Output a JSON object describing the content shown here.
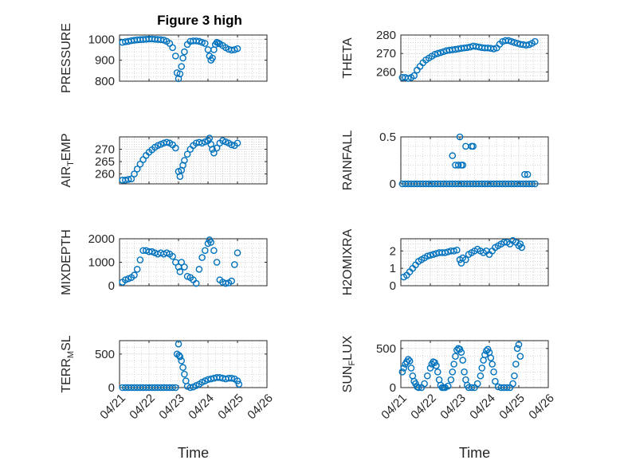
{
  "chart_data": [
    {
      "type": "scatter",
      "title": "Figure 3 high",
      "ylabel": "PRESSURE",
      "ylabel_base": "PRESSURE",
      "ylabel_sub": "",
      "ylabel_tail": "",
      "xlim": [
        0,
        5
      ],
      "xticks": [
        "04/21",
        "04/22",
        "04/23",
        "04/24",
        "04/25",
        "04/26"
      ],
      "show_xticklabels": false,
      "xlabel": "",
      "ylim": [
        800,
        1020
      ],
      "yticks": [
        800,
        900,
        1000
      ],
      "color": "#0072bd",
      "x": [
        0.1,
        0.2,
        0.3,
        0.4,
        0.5,
        0.6,
        0.7,
        0.8,
        0.9,
        1.0,
        1.1,
        1.2,
        1.3,
        1.4,
        1.5,
        1.6,
        1.7,
        1.8,
        1.9,
        1.95,
        2.0,
        2.05,
        2.1,
        2.15,
        2.2,
        2.3,
        2.4,
        2.5,
        2.6,
        2.7,
        2.8,
        2.9,
        3.0,
        3.05,
        3.1,
        3.15,
        3.2,
        3.25,
        3.3,
        3.35,
        3.4,
        3.5,
        3.6,
        3.7,
        3.8,
        3.9,
        4.0
      ],
      "y": [
        985,
        988,
        990,
        993,
        995,
        997,
        998,
        999,
        1000,
        1001,
        1001,
        1000,
        999,
        998,
        996,
        990,
        980,
        960,
        920,
        840,
        812,
        835,
        870,
        910,
        940,
        975,
        990,
        992,
        992,
        990,
        985,
        980,
        950,
        920,
        900,
        910,
        950,
        975,
        985,
        982,
        978,
        970,
        960,
        952,
        948,
        950,
        955
      ]
    },
    {
      "type": "scatter",
      "title": "",
      "ylabel": "THETA",
      "ylabel_base": "THETA",
      "ylabel_sub": "",
      "ylabel_tail": "",
      "xlim": [
        0,
        5
      ],
      "xticks": [
        "04/21",
        "04/22",
        "04/23",
        "04/24",
        "04/25",
        "04/26"
      ],
      "show_xticklabels": false,
      "xlabel": "",
      "ylim": [
        255,
        280
      ],
      "yticks": [
        260,
        270,
        280
      ],
      "color": "#0072bd",
      "x": [
        0.05,
        0.15,
        0.25,
        0.35,
        0.45,
        0.55,
        0.65,
        0.75,
        0.85,
        0.95,
        1.05,
        1.15,
        1.25,
        1.35,
        1.45,
        1.55,
        1.65,
        1.75,
        1.85,
        1.95,
        2.05,
        2.15,
        2.25,
        2.35,
        2.45,
        2.55,
        2.65,
        2.75,
        2.85,
        2.95,
        3.05,
        3.15,
        3.25,
        3.35,
        3.45,
        3.55,
        3.65,
        3.75,
        3.85,
        3.95,
        4.05,
        4.15,
        4.25,
        4.35,
        4.45,
        4.55
      ],
      "y": [
        257,
        257,
        256.5,
        257,
        258,
        261,
        263,
        265,
        266.5,
        267.5,
        268.5,
        269.5,
        270,
        270.5,
        271,
        271.5,
        271.8,
        272,
        272.2,
        272.5,
        272.8,
        273,
        273.2,
        273.5,
        274,
        273.8,
        273.5,
        273.2,
        273,
        273,
        272.8,
        272.5,
        273,
        275,
        276.5,
        277,
        277,
        276.5,
        276,
        275.5,
        275,
        274.8,
        274.5,
        274.8,
        275.5,
        276.5
      ]
    },
    {
      "type": "scatter",
      "title": "",
      "ylabel": "AIR_TEMP",
      "ylabel_base": "AIR",
      "ylabel_sub": "T",
      "ylabel_tail": "EMP",
      "xlim": [
        0,
        5
      ],
      "xticks": [
        "04/21",
        "04/22",
        "04/23",
        "04/24",
        "04/25",
        "04/26"
      ],
      "show_xticklabels": false,
      "xlabel": "",
      "ylim": [
        256,
        275
      ],
      "yticks": [
        260,
        265,
        270
      ],
      "color": "#0072bd",
      "x": [
        0.1,
        0.2,
        0.3,
        0.4,
        0.5,
        0.6,
        0.7,
        0.8,
        0.9,
        1.0,
        1.1,
        1.2,
        1.3,
        1.4,
        1.5,
        1.6,
        1.7,
        1.8,
        1.9,
        2.0,
        2.05,
        2.1,
        2.15,
        2.2,
        2.3,
        2.4,
        2.5,
        2.6,
        2.7,
        2.8,
        2.9,
        3.0,
        3.05,
        3.1,
        3.15,
        3.2,
        3.3,
        3.4,
        3.5,
        3.6,
        3.7,
        3.8,
        3.9,
        4.0
      ],
      "y": [
        257.5,
        257.5,
        257.8,
        258,
        260,
        262,
        264,
        265.8,
        267.5,
        268.8,
        269.8,
        270.8,
        271.5,
        272,
        272.5,
        272.8,
        272.5,
        271.8,
        270.5,
        261,
        259,
        261.5,
        263.5,
        265.5,
        268,
        270,
        271.5,
        272.5,
        272.8,
        272.5,
        273,
        273.5,
        274.5,
        272,
        270,
        268.5,
        270.5,
        272.5,
        273.5,
        273,
        272.5,
        271.8,
        271.5,
        272.5
      ]
    },
    {
      "type": "scatter",
      "title": "",
      "ylabel": "RAINFALL",
      "ylabel_base": "RAINFALL",
      "ylabel_sub": "",
      "ylabel_tail": "",
      "xlim": [
        0,
        5
      ],
      "xticks": [
        "04/21",
        "04/22",
        "04/23",
        "04/24",
        "04/25",
        "04/26"
      ],
      "show_xticklabels": false,
      "xlabel": "",
      "ylim": [
        0,
        0.5
      ],
      "yticks": [
        0,
        0.5
      ],
      "color": "#0072bd",
      "x": [
        0.05,
        0.15,
        0.25,
        0.35,
        0.45,
        0.55,
        0.65,
        0.75,
        0.85,
        0.95,
        1.05,
        1.15,
        1.25,
        1.35,
        1.45,
        1.55,
        1.65,
        1.75,
        1.85,
        1.95,
        2.05,
        2.15,
        2.25,
        2.35,
        2.45,
        2.55,
        2.65,
        2.75,
        2.85,
        2.95,
        3.05,
        3.15,
        3.25,
        3.35,
        3.45,
        3.55,
        3.65,
        3.75,
        3.85,
        3.95,
        4.05,
        4.15,
        4.25,
        4.35,
        4.45,
        4.55,
        1.75,
        1.85,
        1.95,
        2.0,
        2.05,
        2.1,
        2.2,
        2.4,
        2.45,
        4.2,
        4.3
      ],
      "y": [
        0,
        0,
        0,
        0,
        0,
        0,
        0,
        0,
        0,
        0,
        0,
        0,
        0,
        0,
        0,
        0,
        0,
        0,
        0,
        0,
        0,
        0,
        0,
        0,
        0,
        0,
        0,
        0,
        0,
        0,
        0,
        0,
        0,
        0,
        0,
        0,
        0,
        0,
        0,
        0,
        0,
        0,
        0,
        0,
        0,
        0,
        0.3,
        0.2,
        0.2,
        0.5,
        0.2,
        0.2,
        0.4,
        0.4,
        0.4,
        0.1,
        0.1
      ]
    },
    {
      "type": "scatter",
      "title": "",
      "ylabel": "MIXDEPTH",
      "ylabel_base": "MIXDEPTH",
      "ylabel_sub": "",
      "ylabel_tail": "",
      "xlim": [
        0,
        5
      ],
      "xticks": [
        "04/21",
        "04/22",
        "04/23",
        "04/24",
        "04/25",
        "04/26"
      ],
      "show_xticklabels": false,
      "xlabel": "",
      "ylim": [
        0,
        2000
      ],
      "yticks": [
        0,
        1000,
        2000
      ],
      "color": "#0072bd",
      "x": [
        0.1,
        0.2,
        0.3,
        0.4,
        0.5,
        0.6,
        0.7,
        0.8,
        0.9,
        1.0,
        1.1,
        1.2,
        1.3,
        1.4,
        1.5,
        1.6,
        1.7,
        1.8,
        1.9,
        2.0,
        2.05,
        2.1,
        2.2,
        2.3,
        2.4,
        2.5,
        2.6,
        2.7,
        2.8,
        2.9,
        3.0,
        3.05,
        3.1,
        3.2,
        3.3,
        3.4,
        3.5,
        3.6,
        3.7,
        3.8,
        3.9,
        4.0
      ],
      "y": [
        150,
        250,
        300,
        350,
        450,
        700,
        1100,
        1500,
        1500,
        1450,
        1450,
        1400,
        1350,
        1400,
        1350,
        1400,
        1350,
        1250,
        1000,
        800,
        600,
        1000,
        800,
        400,
        350,
        250,
        100,
        700,
        1200,
        1500,
        1800,
        1950,
        1850,
        1500,
        1000,
        250,
        150,
        100,
        120,
        200,
        900,
        1400
      ]
    },
    {
      "type": "scatter",
      "title": "",
      "ylabel": "H2OMIXRA",
      "ylabel_base": "H2OMIXRA",
      "ylabel_sub": "",
      "ylabel_tail": "",
      "xlim": [
        0,
        5
      ],
      "xticks": [
        "04/21",
        "04/22",
        "04/23",
        "04/24",
        "04/25",
        "04/26"
      ],
      "show_xticklabels": false,
      "xlabel": "",
      "ylim": [
        0,
        2.7
      ],
      "yticks": [
        0,
        1,
        2
      ],
      "color": "#0072bd",
      "x": [
        0.1,
        0.2,
        0.3,
        0.4,
        0.5,
        0.6,
        0.7,
        0.8,
        0.9,
        1.0,
        1.1,
        1.2,
        1.3,
        1.4,
        1.5,
        1.6,
        1.7,
        1.8,
        1.9,
        2.0,
        2.05,
        2.1,
        2.2,
        2.3,
        2.4,
        2.5,
        2.6,
        2.7,
        2.8,
        2.9,
        3.0,
        3.1,
        3.2,
        3.3,
        3.4,
        3.5,
        3.6,
        3.7,
        3.8,
        3.9,
        4.0,
        4.05,
        4.1
      ],
      "y": [
        0.5,
        0.6,
        0.8,
        1.0,
        1.2,
        1.4,
        1.5,
        1.6,
        1.7,
        1.75,
        1.8,
        1.85,
        1.9,
        1.9,
        1.9,
        1.95,
        2.0,
        2.0,
        2.05,
        1.5,
        1.3,
        1.6,
        1.5,
        1.8,
        1.9,
        2.0,
        2.1,
        2.0,
        1.9,
        2.0,
        1.8,
        2.0,
        2.2,
        2.3,
        2.4,
        2.5,
        2.5,
        2.4,
        2.6,
        2.5,
        2.3,
        2.4,
        2.2
      ]
    },
    {
      "type": "scatter",
      "title": "",
      "ylabel": "TERR_MSL",
      "ylabel_base": "TERR",
      "ylabel_sub": "M",
      "ylabel_tail": "SL",
      "xlim": [
        0,
        5
      ],
      "xticks": [
        "04/21",
        "04/22",
        "04/23",
        "04/24",
        "04/25",
        "04/26"
      ],
      "show_xticklabels": true,
      "xlabel": "Time",
      "ylim": [
        0,
        700
      ],
      "yticks": [
        0,
        500
      ],
      "color": "#0072bd",
      "x": [
        0.1,
        0.2,
        0.3,
        0.4,
        0.5,
        0.6,
        0.7,
        0.8,
        0.9,
        1.0,
        1.1,
        1.2,
        1.3,
        1.4,
        1.5,
        1.6,
        1.7,
        1.8,
        1.9,
        1.95,
        2.0,
        2.02,
        2.05,
        2.1,
        2.15,
        2.2,
        2.25,
        2.3,
        2.4,
        2.5,
        2.6,
        2.7,
        2.8,
        2.9,
        3.0,
        3.1,
        3.2,
        3.3,
        3.4,
        3.5,
        3.6,
        3.7,
        3.8,
        3.9,
        4.0,
        4.05
      ],
      "y": [
        0,
        0,
        0,
        0,
        0,
        0,
        0,
        0,
        0,
        0,
        0,
        0,
        0,
        0,
        0,
        0,
        0,
        0,
        0,
        500,
        650,
        480,
        460,
        400,
        300,
        200,
        100,
        20,
        0,
        10,
        30,
        50,
        80,
        100,
        120,
        130,
        140,
        150,
        150,
        140,
        130,
        140,
        140,
        130,
        100,
        50
      ]
    },
    {
      "type": "scatter",
      "title": "",
      "ylabel": "SUN_FLUX",
      "ylabel_base": "SUN",
      "ylabel_sub": "F",
      "ylabel_tail": "LUX",
      "xlim": [
        0,
        5
      ],
      "xticks": [
        "04/21",
        "04/22",
        "04/23",
        "04/24",
        "04/25",
        "04/26"
      ],
      "show_xticklabels": true,
      "xlabel": "Time",
      "ylim": [
        0,
        600
      ],
      "yticks": [
        0,
        500
      ],
      "color": "#0072bd",
      "x": [
        0.05,
        0.1,
        0.15,
        0.2,
        0.25,
        0.3,
        0.35,
        0.4,
        0.45,
        0.5,
        0.55,
        0.6,
        0.7,
        0.8,
        0.9,
        1.0,
        1.05,
        1.1,
        1.15,
        1.2,
        1.25,
        1.3,
        1.35,
        1.4,
        1.45,
        1.5,
        1.6,
        1.7,
        1.75,
        1.8,
        1.85,
        1.9,
        1.95,
        2.0,
        2.05,
        2.1,
        2.15,
        2.2,
        2.25,
        2.3,
        2.4,
        2.5,
        2.6,
        2.7,
        2.75,
        2.8,
        2.85,
        2.9,
        2.95,
        3.0,
        3.05,
        3.1,
        3.15,
        3.2,
        3.3,
        3.4,
        3.5,
        3.6,
        3.7,
        3.8,
        3.85,
        3.9,
        3.95,
        4.0,
        4.05
      ],
      "y": [
        200,
        250,
        300,
        330,
        360,
        340,
        250,
        150,
        80,
        50,
        10,
        0,
        0,
        50,
        150,
        250,
        300,
        330,
        320,
        280,
        200,
        100,
        30,
        0,
        0,
        0,
        20,
        100,
        200,
        300,
        400,
        480,
        500,
        490,
        450,
        350,
        200,
        100,
        30,
        0,
        0,
        0,
        50,
        150,
        250,
        350,
        420,
        470,
        490,
        450,
        380,
        300,
        200,
        80,
        10,
        0,
        0,
        0,
        0,
        50,
        150,
        300,
        500,
        550,
        400
      ]
    }
  ]
}
